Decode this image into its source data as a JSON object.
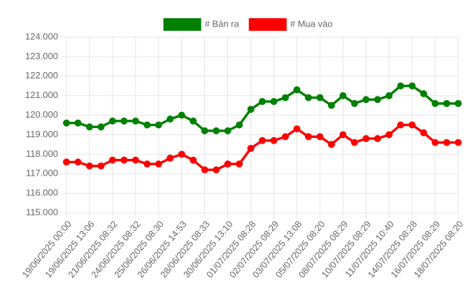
{
  "chart_data": {
    "type": "line",
    "categories": [
      "19/06/2025 00:00",
      null,
      "19/06/2025 13:06",
      null,
      "21/06/2025 08:32",
      null,
      "24/06/2025 08:32",
      null,
      "25/06/2025 08:30",
      null,
      "26/06/2025 14:53",
      null,
      "28/06/2025 08:33",
      null,
      "30/06/2025 13:10",
      null,
      "01/07/2025 08:28",
      null,
      "02/07/2025 08:29",
      null,
      "03/07/2025 13:08",
      null,
      "05/07/2025 08:20",
      null,
      "08/07/2025 08:29",
      null,
      "10/07/2025 08:29",
      null,
      "11/07/2025 10:40",
      null,
      "14/07/2025 08:28",
      null,
      "16/07/2025 08:29",
      null,
      "18/07/2025 08:20"
    ],
    "series": [
      {
        "name": "# Bán ra",
        "color": "#008000",
        "values": [
          119600,
          119600,
          119400,
          119400,
          119700,
          119700,
          119700,
          119500,
          119500,
          119800,
          120000,
          119700,
          119200,
          119200,
          119200,
          119500,
          120300,
          120700,
          120700,
          120900,
          121300,
          120900,
          120900,
          120500,
          121000,
          120600,
          120800,
          120800,
          121000,
          121500,
          121500,
          121100,
          120600,
          120600,
          120600
        ]
      },
      {
        "name": "# Mua vào",
        "color": "#ff0000",
        "values": [
          117600,
          117600,
          117400,
          117400,
          117700,
          117700,
          117700,
          117500,
          117500,
          117800,
          118000,
          117700,
          117200,
          117200,
          117500,
          117500,
          118300,
          118700,
          118700,
          118900,
          119300,
          118900,
          118900,
          118500,
          119000,
          118600,
          118800,
          118800,
          119000,
          119500,
          119500,
          119100,
          118600,
          118600,
          118600
        ]
      }
    ],
    "ylim": [
      115000,
      124000
    ],
    "yticks": [
      {
        "value": 115000,
        "label": "115.000"
      },
      {
        "value": 116000,
        "label": "116.000"
      },
      {
        "value": 117000,
        "label": "117.000"
      },
      {
        "value": 118000,
        "label": "118.000"
      },
      {
        "value": 119000,
        "label": "119.000"
      },
      {
        "value": 120000,
        "label": "120.000"
      },
      {
        "value": 121000,
        "label": "121.000"
      },
      {
        "value": 122000,
        "label": "122.000"
      },
      {
        "value": 123000,
        "label": "123.000"
      },
      {
        "value": 124000,
        "label": "124.000"
      }
    ],
    "grid": true,
    "legend": "top"
  }
}
